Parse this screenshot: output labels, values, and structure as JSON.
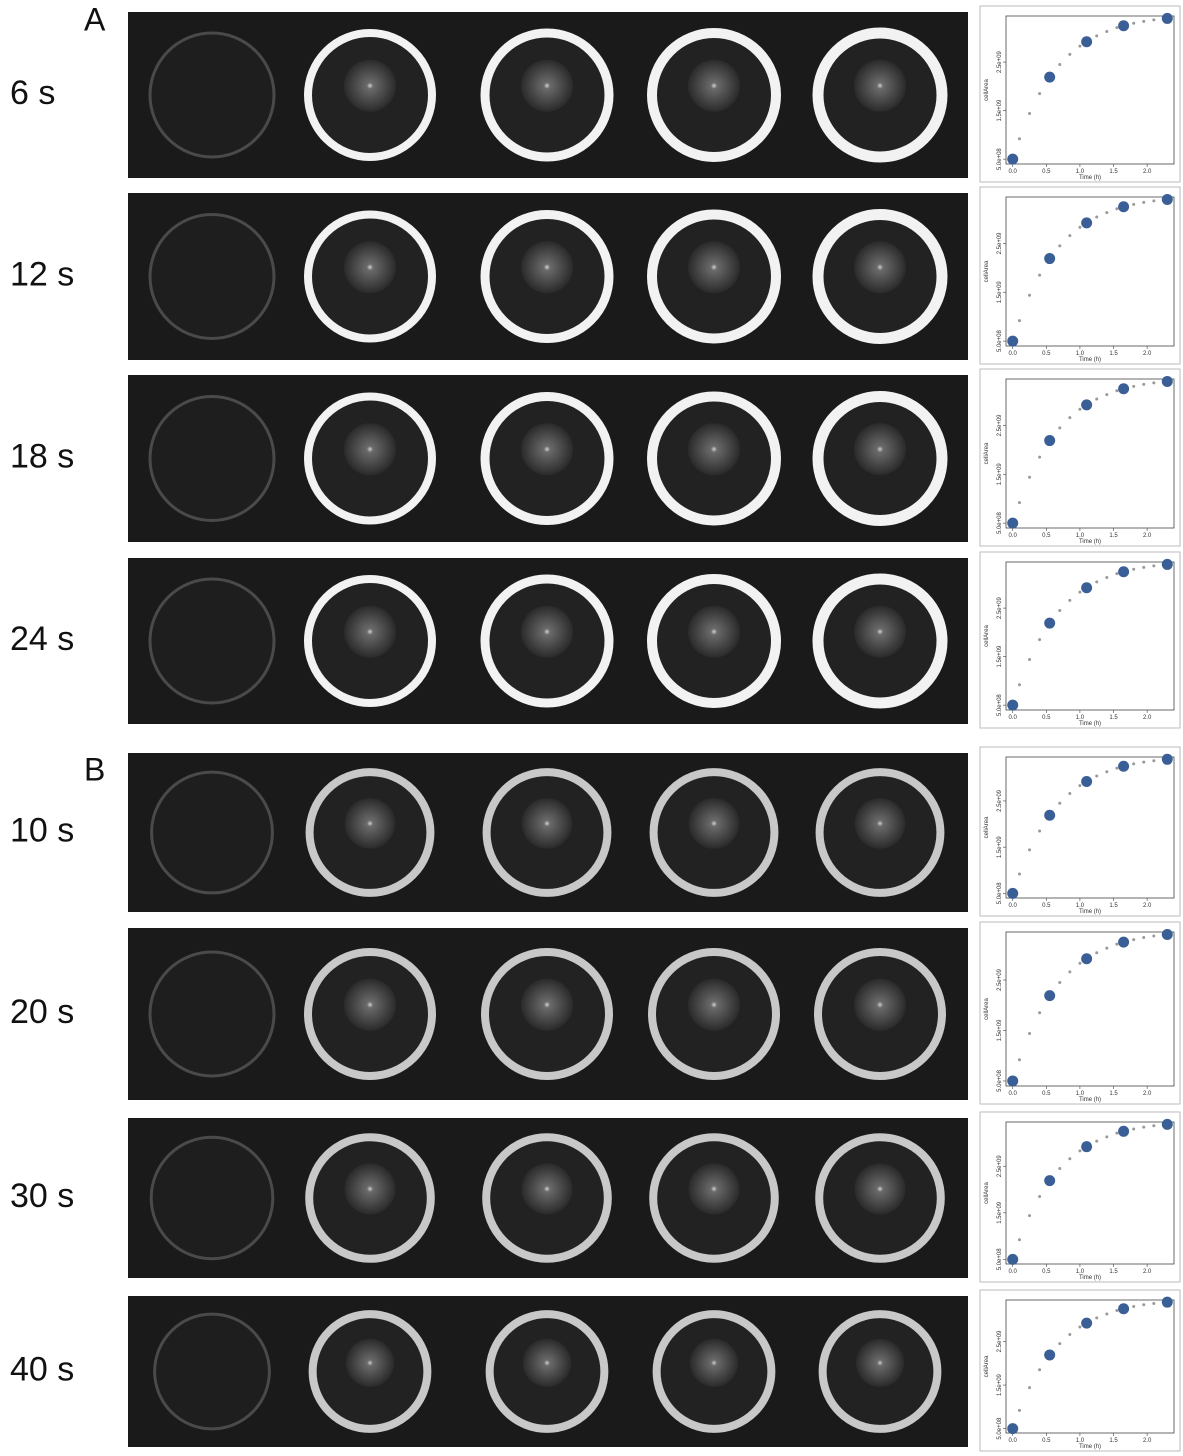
{
  "panels": [
    {
      "label": "A",
      "rows": [
        {
          "label": "6 s"
        },
        {
          "label": "12 s"
        },
        {
          "label": "18 s"
        },
        {
          "label": "24 s"
        }
      ]
    },
    {
      "label": "B",
      "rows": [
        {
          "label": "10 s"
        },
        {
          "label": "20 s"
        },
        {
          "label": "30 s"
        },
        {
          "label": "40 s"
        }
      ]
    }
  ],
  "chart_data": [
    {
      "type": "scatter",
      "x_label": "Time (h)",
      "y_label": "cellArea",
      "xlim": [
        -0.1,
        2.4
      ],
      "ylim": [
        400000000.0,
        3450000000.0
      ],
      "xticks": [
        {
          "value": 0,
          "label": "0.0"
        },
        {
          "value": 0.5,
          "label": "0.5"
        },
        {
          "value": 1,
          "label": "1.0"
        },
        {
          "value": 1.5,
          "label": "1.5"
        },
        {
          "value": 2,
          "label": "2.0"
        }
      ],
      "yticks": [
        {
          "value": 500000000.0,
          "label": "5.0e+08"
        },
        {
          "value": 1500000000.0,
          "label": "1.5e+09"
        },
        {
          "value": 2500000000.0,
          "label": "2.5e+09"
        }
      ],
      "x": [
        0,
        0.1,
        0.25,
        0.4,
        0.55,
        0.7,
        0.85,
        1.0,
        1.1,
        1.25,
        1.4,
        1.55,
        1.65,
        1.8,
        1.95,
        2.1,
        2.3
      ],
      "series": [
        {
          "color": "#999999",
          "values": [
            500000000.0,
            920000000.0,
            1440000000.0,
            1850000000.0,
            2190000000.0,
            2450000000.0,
            2660000000.0,
            2830000000.0,
            2920000000.0,
            3040000000.0,
            3130000000.0,
            3210000000.0,
            3250000000.0,
            3300000000.0,
            3340000000.0,
            3370000000.0,
            3400000000.0
          ]
        },
        {
          "color": "#3a5f97",
          "values": [
            500000000.0,
            null,
            null,
            null,
            2190000000.0,
            null,
            null,
            null,
            2920000000.0,
            null,
            null,
            null,
            3250000000.0,
            null,
            null,
            null,
            3400000000.0
          ]
        }
      ]
    },
    {
      "type": "scatter",
      "x_label": "Time (h)",
      "y_label": "cellArea",
      "xlim": [
        -0.1,
        2.4
      ],
      "ylim": [
        400000000.0,
        3450000000.0
      ],
      "xticks": [
        {
          "value": 0,
          "label": "0.0"
        },
        {
          "value": 0.5,
          "label": "0.5"
        },
        {
          "value": 1,
          "label": "1.0"
        },
        {
          "value": 1.5,
          "label": "1.5"
        },
        {
          "value": 2,
          "label": "2.0"
        }
      ],
      "yticks": [
        {
          "value": 500000000.0,
          "label": "5.0e+08"
        },
        {
          "value": 1500000000.0,
          "label": "1.5e+09"
        },
        {
          "value": 2500000000.0,
          "label": "2.5e+09"
        }
      ],
      "x": [
        0,
        0.1,
        0.25,
        0.4,
        0.55,
        0.7,
        0.85,
        1.0,
        1.1,
        1.25,
        1.4,
        1.55,
        1.65,
        1.8,
        1.95,
        2.1,
        2.3
      ],
      "series": [
        {
          "color": "#999999",
          "values": [
            500000000.0,
            920000000.0,
            1440000000.0,
            1850000000.0,
            2190000000.0,
            2450000000.0,
            2660000000.0,
            2830000000.0,
            2920000000.0,
            3040000000.0,
            3130000000.0,
            3210000000.0,
            3250000000.0,
            3300000000.0,
            3340000000.0,
            3370000000.0,
            3400000000.0
          ]
        },
        {
          "color": "#3a5f97",
          "values": [
            500000000.0,
            null,
            null,
            null,
            2190000000.0,
            null,
            null,
            null,
            2920000000.0,
            null,
            null,
            null,
            3250000000.0,
            null,
            null,
            null,
            3400000000.0
          ]
        }
      ]
    },
    {
      "type": "scatter",
      "x_label": "Time (h)",
      "y_label": "cellArea",
      "xlim": [
        -0.1,
        2.4
      ],
      "ylim": [
        400000000.0,
        3450000000.0
      ],
      "xticks": [
        {
          "value": 0,
          "label": "0.0"
        },
        {
          "value": 0.5,
          "label": "0.5"
        },
        {
          "value": 1,
          "label": "1.0"
        },
        {
          "value": 1.5,
          "label": "1.5"
        },
        {
          "value": 2,
          "label": "2.0"
        }
      ],
      "yticks": [
        {
          "value": 500000000.0,
          "label": "5.0e+08"
        },
        {
          "value": 1500000000.0,
          "label": "1.5e+09"
        },
        {
          "value": 2500000000.0,
          "label": "2.5e+09"
        }
      ],
      "x": [
        0,
        0.1,
        0.25,
        0.4,
        0.55,
        0.7,
        0.85,
        1.0,
        1.1,
        1.25,
        1.4,
        1.55,
        1.65,
        1.8,
        1.95,
        2.1,
        2.3
      ],
      "series": [
        {
          "color": "#999999",
          "values": [
            500000000.0,
            920000000.0,
            1440000000.0,
            1850000000.0,
            2190000000.0,
            2450000000.0,
            2660000000.0,
            2830000000.0,
            2920000000.0,
            3040000000.0,
            3130000000.0,
            3210000000.0,
            3250000000.0,
            3300000000.0,
            3340000000.0,
            3370000000.0,
            3400000000.0
          ]
        },
        {
          "color": "#3a5f97",
          "values": [
            500000000.0,
            null,
            null,
            null,
            2190000000.0,
            null,
            null,
            null,
            2920000000.0,
            null,
            null,
            null,
            3250000000.0,
            null,
            null,
            null,
            3400000000.0
          ]
        }
      ]
    },
    {
      "type": "scatter",
      "x_label": "Time (h)",
      "y_label": "cellArea",
      "xlim": [
        -0.1,
        2.4
      ],
      "ylim": [
        400000000.0,
        3450000000.0
      ],
      "xticks": [
        {
          "value": 0,
          "label": "0.0"
        },
        {
          "value": 0.5,
          "label": "0.5"
        },
        {
          "value": 1,
          "label": "1.0"
        },
        {
          "value": 1.5,
          "label": "1.5"
        },
        {
          "value": 2,
          "label": "2.0"
        }
      ],
      "yticks": [
        {
          "value": 500000000.0,
          "label": "5.0e+08"
        },
        {
          "value": 1500000000.0,
          "label": "1.5e+09"
        },
        {
          "value": 2500000000.0,
          "label": "2.5e+09"
        }
      ],
      "x": [
        0,
        0.1,
        0.25,
        0.4,
        0.55,
        0.7,
        0.85,
        1.0,
        1.1,
        1.25,
        1.4,
        1.55,
        1.65,
        1.8,
        1.95,
        2.1,
        2.3
      ],
      "series": [
        {
          "color": "#999999",
          "values": [
            500000000.0,
            920000000.0,
            1440000000.0,
            1850000000.0,
            2190000000.0,
            2450000000.0,
            2660000000.0,
            2830000000.0,
            2920000000.0,
            3040000000.0,
            3130000000.0,
            3210000000.0,
            3250000000.0,
            3300000000.0,
            3340000000.0,
            3370000000.0,
            3400000000.0
          ]
        },
        {
          "color": "#3a5f97",
          "values": [
            500000000.0,
            null,
            null,
            null,
            2190000000.0,
            null,
            null,
            null,
            2920000000.0,
            null,
            null,
            null,
            3250000000.0,
            null,
            null,
            null,
            3400000000.0
          ]
        }
      ]
    },
    {
      "type": "scatter",
      "x_label": "Time (h)",
      "y_label": "cellArea",
      "xlim": [
        -0.1,
        2.4
      ],
      "ylim": [
        400000000.0,
        3450000000.0
      ],
      "xticks": [
        {
          "value": 0,
          "label": "0.0"
        },
        {
          "value": 0.5,
          "label": "0.5"
        },
        {
          "value": 1,
          "label": "1.0"
        },
        {
          "value": 1.5,
          "label": "1.5"
        },
        {
          "value": 2,
          "label": "2.0"
        }
      ],
      "yticks": [
        {
          "value": 500000000.0,
          "label": "5.0e+08"
        },
        {
          "value": 1500000000.0,
          "label": "1.5e+09"
        },
        {
          "value": 2500000000.0,
          "label": "2.5e+09"
        }
      ],
      "x": [
        0,
        0.1,
        0.25,
        0.4,
        0.55,
        0.7,
        0.85,
        1.0,
        1.1,
        1.25,
        1.4,
        1.55,
        1.65,
        1.8,
        1.95,
        2.1,
        2.3
      ],
      "series": [
        {
          "color": "#999999",
          "values": [
            500000000.0,
            920000000.0,
            1440000000.0,
            1850000000.0,
            2190000000.0,
            2450000000.0,
            2660000000.0,
            2830000000.0,
            2920000000.0,
            3040000000.0,
            3130000000.0,
            3210000000.0,
            3250000000.0,
            3300000000.0,
            3340000000.0,
            3370000000.0,
            3400000000.0
          ]
        },
        {
          "color": "#3a5f97",
          "values": [
            500000000.0,
            null,
            null,
            null,
            2190000000.0,
            null,
            null,
            null,
            2920000000.0,
            null,
            null,
            null,
            3250000000.0,
            null,
            null,
            null,
            3400000000.0
          ]
        }
      ]
    },
    {
      "type": "scatter",
      "x_label": "Time (h)",
      "y_label": "cellArea",
      "xlim": [
        -0.1,
        2.4
      ],
      "ylim": [
        400000000.0,
        3450000000.0
      ],
      "xticks": [
        {
          "value": 0,
          "label": "0.0"
        },
        {
          "value": 0.5,
          "label": "0.5"
        },
        {
          "value": 1,
          "label": "1.0"
        },
        {
          "value": 1.5,
          "label": "1.5"
        },
        {
          "value": 2,
          "label": "2.0"
        }
      ],
      "yticks": [
        {
          "value": 500000000.0,
          "label": "5.0e+08"
        },
        {
          "value": 1500000000.0,
          "label": "1.5e+09"
        },
        {
          "value": 2500000000.0,
          "label": "2.5e+09"
        }
      ],
      "x": [
        0,
        0.1,
        0.25,
        0.4,
        0.55,
        0.7,
        0.85,
        1.0,
        1.1,
        1.25,
        1.4,
        1.55,
        1.65,
        1.8,
        1.95,
        2.1,
        2.3
      ],
      "series": [
        {
          "color": "#999999",
          "values": [
            500000000.0,
            920000000.0,
            1440000000.0,
            1850000000.0,
            2190000000.0,
            2450000000.0,
            2660000000.0,
            2830000000.0,
            2920000000.0,
            3040000000.0,
            3130000000.0,
            3210000000.0,
            3250000000.0,
            3300000000.0,
            3340000000.0,
            3370000000.0,
            3400000000.0
          ]
        },
        {
          "color": "#3a5f97",
          "values": [
            500000000.0,
            null,
            null,
            null,
            2190000000.0,
            null,
            null,
            null,
            2920000000.0,
            null,
            null,
            null,
            3250000000.0,
            null,
            null,
            null,
            3400000000.0
          ]
        }
      ]
    },
    {
      "type": "scatter",
      "x_label": "Time (h)",
      "y_label": "cellArea",
      "xlim": [
        -0.1,
        2.4
      ],
      "ylim": [
        400000000.0,
        3450000000.0
      ],
      "xticks": [
        {
          "value": 0,
          "label": "0.0"
        },
        {
          "value": 0.5,
          "label": "0.5"
        },
        {
          "value": 1,
          "label": "1.0"
        },
        {
          "value": 1.5,
          "label": "1.5"
        },
        {
          "value": 2,
          "label": "2.0"
        }
      ],
      "yticks": [
        {
          "value": 500000000.0,
          "label": "5.0e+08"
        },
        {
          "value": 1500000000.0,
          "label": "1.5e+09"
        },
        {
          "value": 2500000000.0,
          "label": "2.5e+09"
        }
      ],
      "x": [
        0,
        0.1,
        0.25,
        0.4,
        0.55,
        0.7,
        0.85,
        1.0,
        1.1,
        1.25,
        1.4,
        1.55,
        1.65,
        1.8,
        1.95,
        2.1,
        2.3
      ],
      "series": [
        {
          "color": "#999999",
          "values": [
            500000000.0,
            920000000.0,
            1440000000.0,
            1850000000.0,
            2190000000.0,
            2450000000.0,
            2660000000.0,
            2830000000.0,
            2920000000.0,
            3040000000.0,
            3130000000.0,
            3210000000.0,
            3250000000.0,
            3300000000.0,
            3340000000.0,
            3370000000.0,
            3400000000.0
          ]
        },
        {
          "color": "#3a5f97",
          "values": [
            500000000.0,
            null,
            null,
            null,
            2190000000.0,
            null,
            null,
            null,
            2920000000.0,
            null,
            null,
            null,
            3250000000.0,
            null,
            null,
            null,
            3400000000.0
          ]
        }
      ]
    },
    {
      "type": "scatter",
      "x_label": "Time (h)",
      "y_label": "cellArea",
      "xlim": [
        -0.1,
        2.4
      ],
      "ylim": [
        400000000.0,
        3450000000.0
      ],
      "xticks": [
        {
          "value": 0,
          "label": "0.0"
        },
        {
          "value": 0.5,
          "label": "0.5"
        },
        {
          "value": 1,
          "label": "1.0"
        },
        {
          "value": 1.5,
          "label": "1.5"
        },
        {
          "value": 2,
          "label": "2.0"
        }
      ],
      "yticks": [
        {
          "value": 500000000.0,
          "label": "5.0e+08"
        },
        {
          "value": 1500000000.0,
          "label": "1.5e+09"
        },
        {
          "value": 2500000000.0,
          "label": "2.5e+09"
        }
      ],
      "x": [
        0,
        0.1,
        0.25,
        0.4,
        0.55,
        0.7,
        0.85,
        1.0,
        1.1,
        1.25,
        1.4,
        1.55,
        1.65,
        1.8,
        1.95,
        2.1,
        2.3
      ],
      "series": [
        {
          "color": "#999999",
          "values": [
            500000000.0,
            920000000.0,
            1440000000.0,
            1850000000.0,
            2190000000.0,
            2450000000.0,
            2660000000.0,
            2830000000.0,
            2920000000.0,
            3040000000.0,
            3130000000.0,
            3210000000.0,
            3250000000.0,
            3300000000.0,
            3340000000.0,
            3370000000.0,
            3400000000.0
          ]
        },
        {
          "color": "#3a5f97",
          "values": [
            500000000.0,
            null,
            null,
            null,
            2190000000.0,
            null,
            null,
            null,
            2920000000.0,
            null,
            null,
            null,
            3250000000.0,
            null,
            null,
            null,
            3400000000.0
          ]
        }
      ]
    }
  ]
}
